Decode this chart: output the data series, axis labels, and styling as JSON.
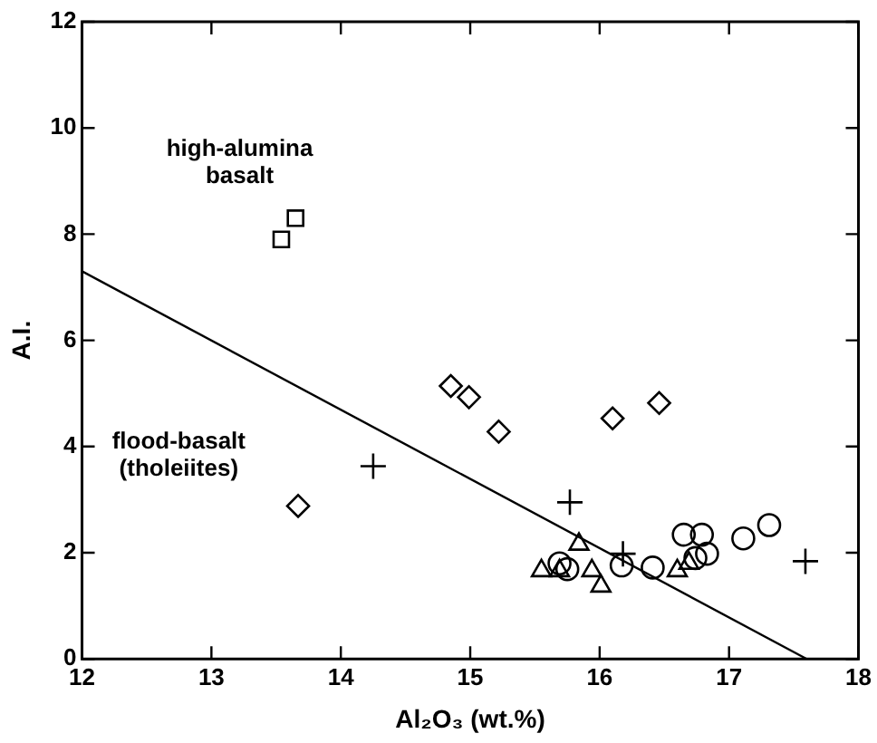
{
  "chart_data": {
    "type": "scatter",
    "xlabel": "Al₂O₃ (wt.%)",
    "ylabel": "A.I.",
    "xlim": [
      12,
      18
    ],
    "xticks": [
      12,
      13,
      14,
      15,
      16,
      17,
      18
    ],
    "ylim": [
      0,
      12
    ],
    "yticks": [
      0,
      2,
      4,
      6,
      8,
      10,
      12
    ],
    "grid": false,
    "legend": false,
    "annotations": [
      "high-alumina\nbasalt",
      "flood-basalt\n(tholeiites)"
    ],
    "series": [
      {
        "color": "#000000",
        "marker": "square",
        "x": [
          13.54,
          13.65
        ],
        "values": [
          7.9,
          8.3
        ]
      },
      {
        "color": "#000000",
        "marker": "diamond",
        "x": [
          13.67,
          14.85,
          14.99,
          15.22,
          16.1,
          16.46
        ],
        "values": [
          2.88,
          5.14,
          4.93,
          4.28,
          4.53,
          4.82
        ]
      },
      {
        "color": "#000000",
        "marker": "cross",
        "x": [
          14.25,
          15.77,
          16.18,
          17.59
        ],
        "values": [
          3.63,
          2.95,
          1.98,
          1.84
        ]
      },
      {
        "color": "#000000",
        "marker": "circle",
        "x": [
          15.69,
          15.75,
          16.17,
          16.41,
          16.65,
          16.79,
          16.83,
          17.11,
          17.31,
          16.74
        ],
        "values": [
          1.8,
          1.69,
          1.76,
          1.72,
          2.34,
          2.34,
          1.98,
          2.27,
          2.52,
          1.9
        ]
      },
      {
        "color": "#000000",
        "marker": "triangle",
        "x": [
          15.55,
          15.69,
          15.84,
          15.94,
          16.01,
          16.6,
          16.69
        ],
        "values": [
          1.66,
          1.66,
          2.16,
          1.66,
          1.37,
          1.66,
          1.8
        ]
      },
      {
        "type": "line",
        "color": "#000000",
        "marker": "none",
        "line_style": "solid",
        "x": [
          12,
          17.6
        ],
        "values": [
          7.3,
          0
        ]
      }
    ]
  }
}
